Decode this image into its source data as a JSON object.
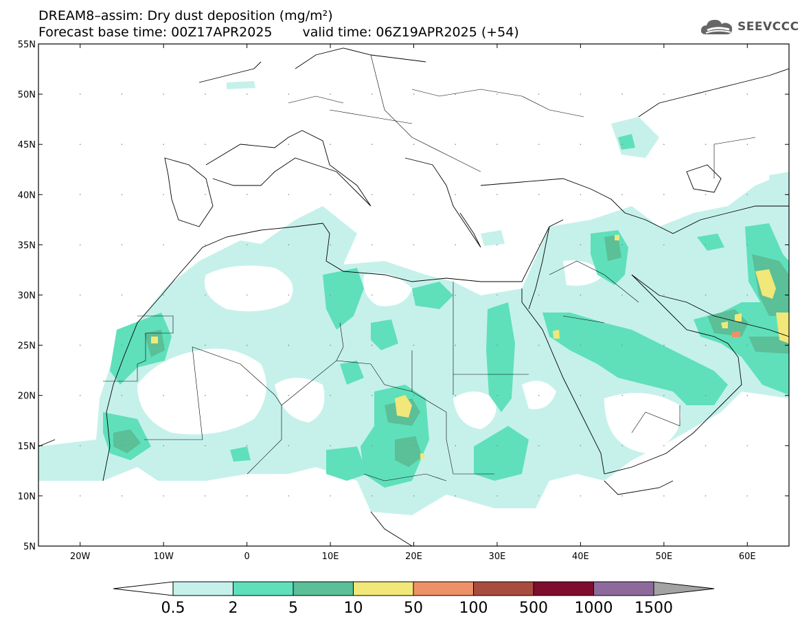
{
  "header": {
    "title_line1": "DREAM8–assim: Dry dust deposition (mg/m²)",
    "base_time": "Forecast base time: 00Z17APR2025",
    "valid_time": "valid time: 06Z19APR2025 (+54)",
    "logo_text": "SEEVCCC",
    "logo_icon": "cloud-icon"
  },
  "map": {
    "lat_labels": [
      "55N",
      "50N",
      "45N",
      "40N",
      "35N",
      "30N",
      "25N",
      "20N",
      "15N",
      "10N",
      "5N"
    ],
    "lon_labels": [
      "20W",
      "10W",
      "0",
      "10E",
      "20E",
      "30E",
      "40E",
      "50E",
      "60E"
    ],
    "lat_range": [
      5,
      55
    ],
    "lon_range": [
      -25,
      65
    ],
    "lat_step": 5,
    "lon_step": 10
  },
  "colorbar": {
    "labels": [
      "0.5",
      "2",
      "5",
      "10",
      "50",
      "100",
      "500",
      "1000",
      "1500"
    ],
    "colors": [
      "#c6f1eb",
      "#5fe0bb",
      "#5bbf98",
      "#f2e779",
      "#ee9168",
      "#a84c3f",
      "#7e0d2e",
      "#8e6a9c"
    ],
    "under_color": "#ffffff",
    "over_color": "#a3a3a3"
  }
}
